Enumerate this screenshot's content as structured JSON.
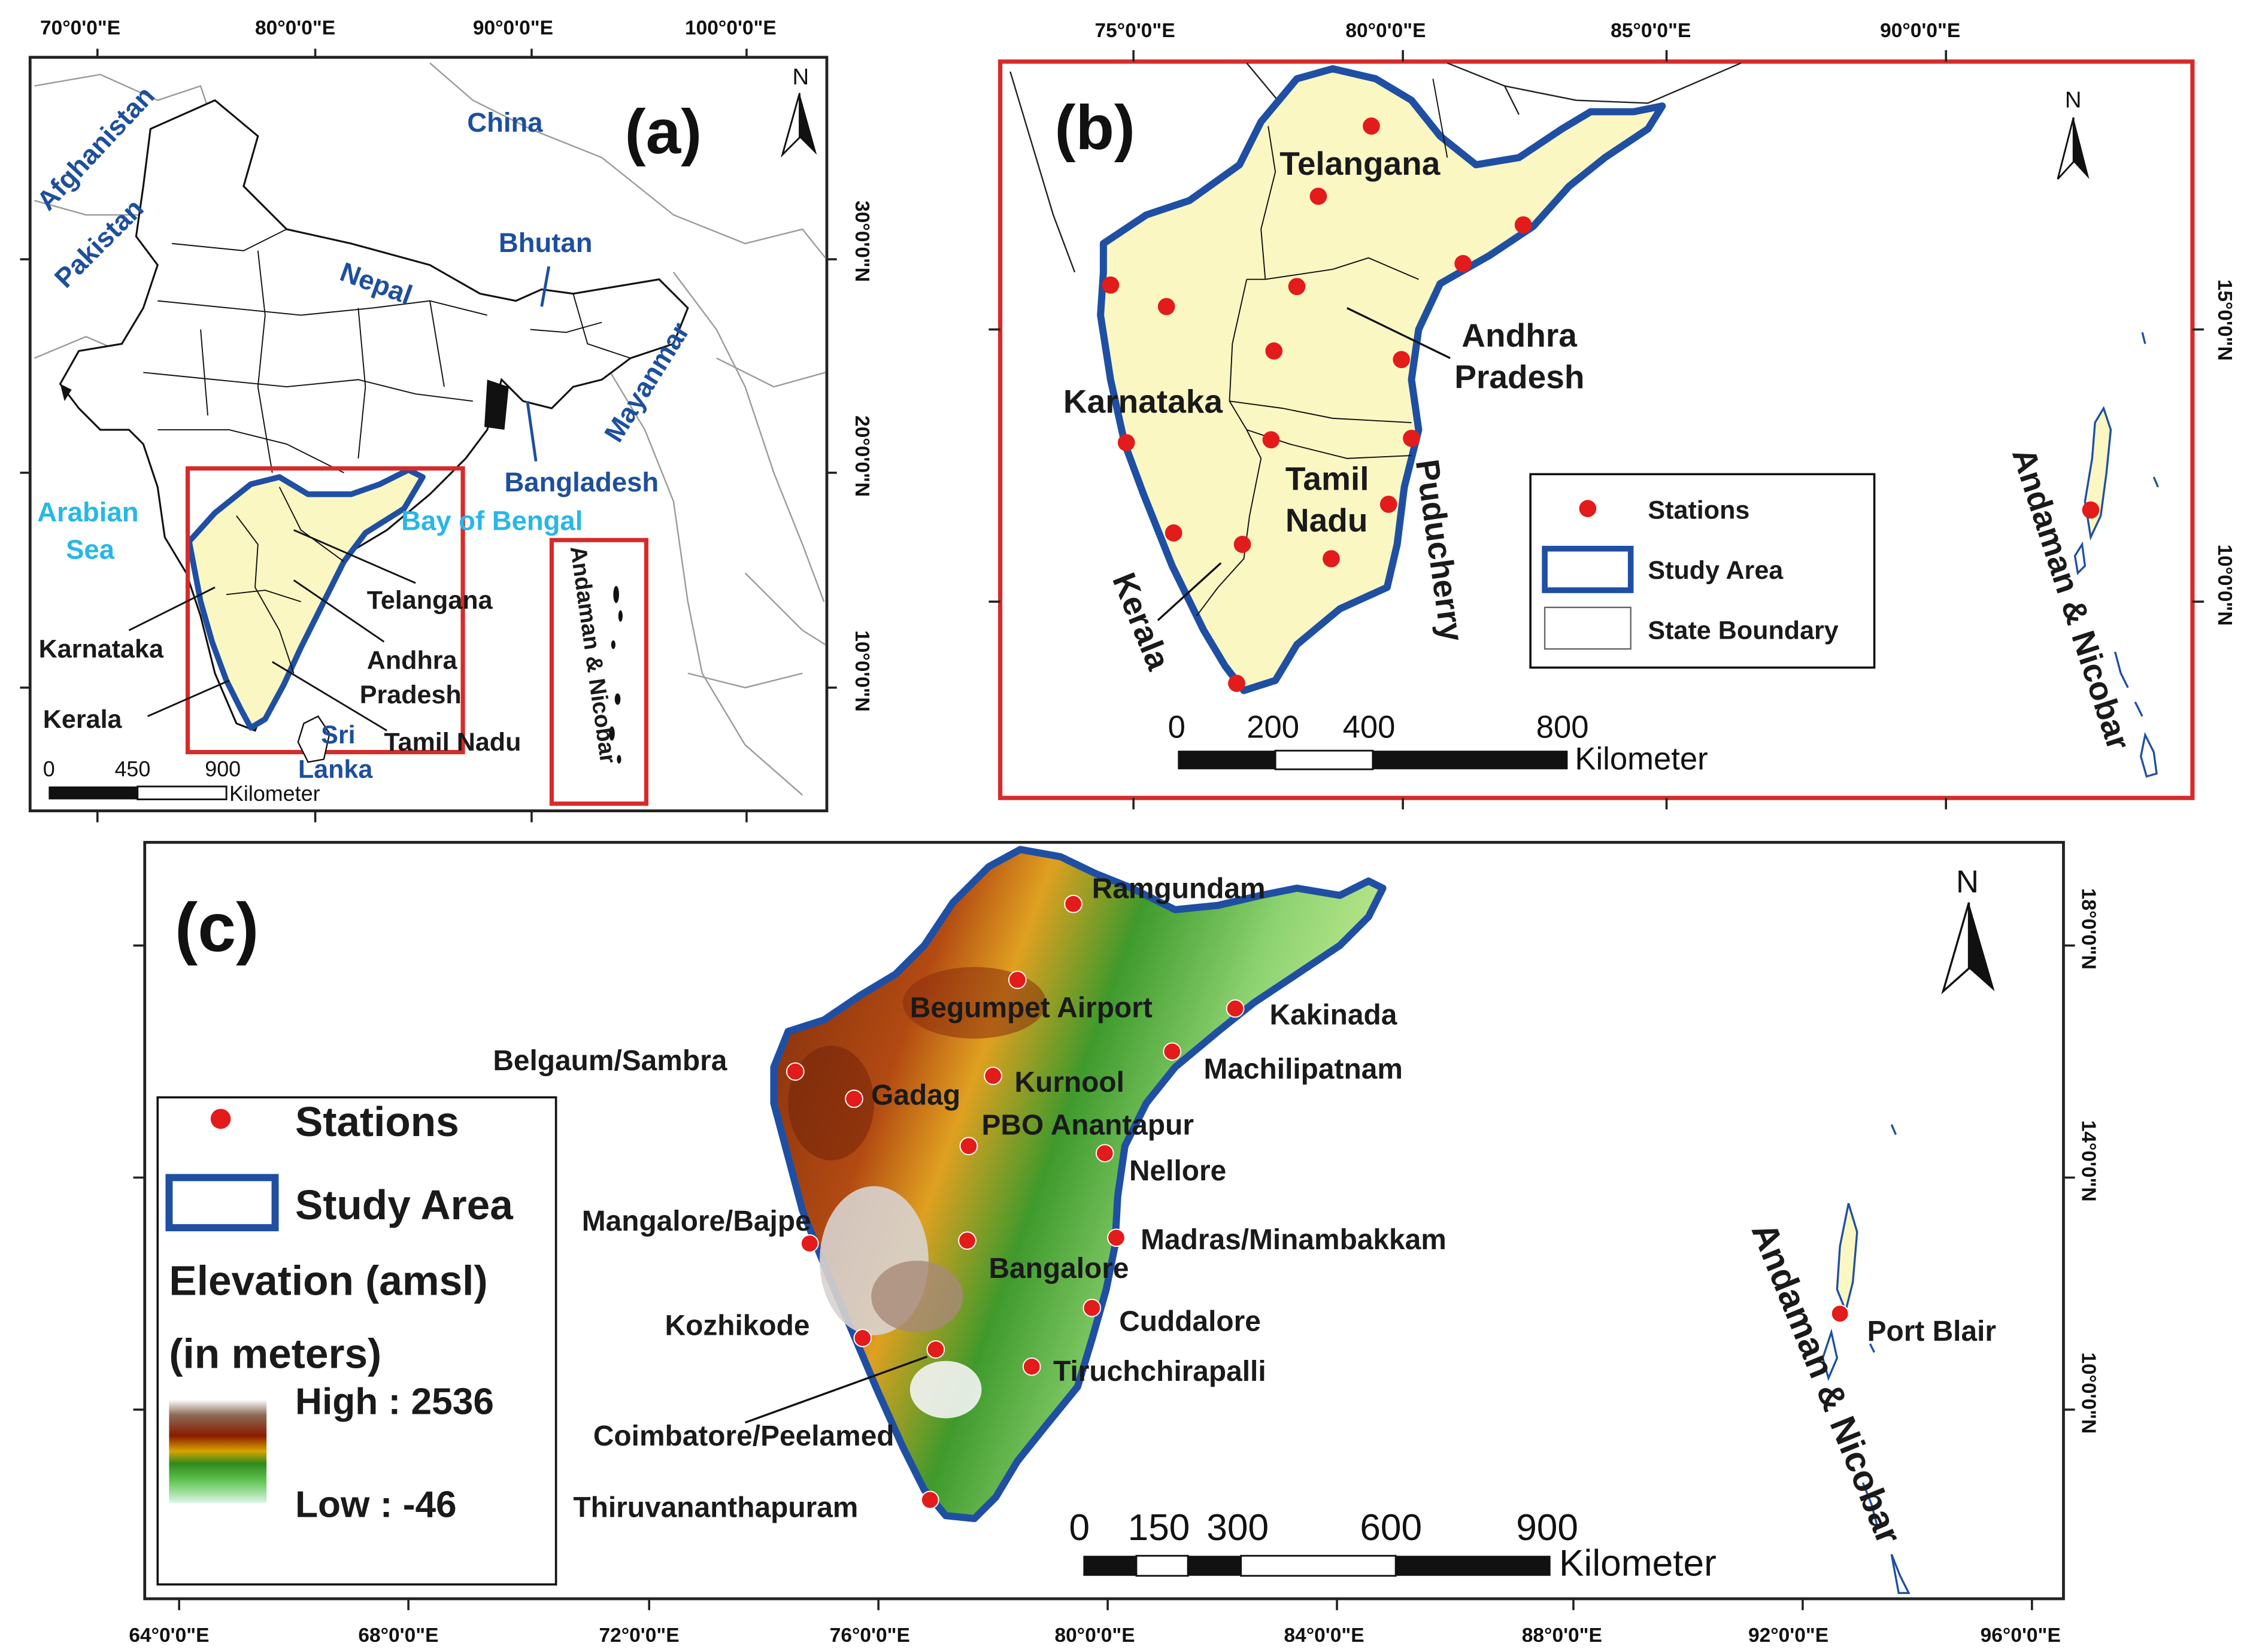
{
  "panels": {
    "a": {
      "label": "(a)",
      "lon_ticks": [
        "70°0'0\"E",
        "80°0'0\"E",
        "90°0'0\"E",
        "100°0'0\"E"
      ],
      "lat_ticks": [
        "30°0'0\"N",
        "20°0'0\"N",
        "10°0'0\"N"
      ],
      "countries": [
        "China",
        "Afghanistan",
        "Pakistan",
        "Nepal",
        "Bhutan",
        "Mayanmar",
        "Bangladesh"
      ],
      "seas": [
        "Arabian",
        "Sea",
        "Bay of Bengal"
      ],
      "states": [
        "Telangana",
        "Karnataka",
        "Andhra",
        "Pradesh",
        "Kerala",
        "Tamil Nadu"
      ],
      "sri_lanka": [
        "Sri",
        "Lanka"
      ],
      "islands": "Andaman & Nicobar",
      "scale": [
        "0",
        "450",
        "900"
      ],
      "scale_unit": "Kilometer",
      "north": "N"
    },
    "b": {
      "label": "(b)",
      "lon_ticks": [
        "75°0'0\"E",
        "80°0'0\"E",
        "85°0'0\"E",
        "90°0'0\"E"
      ],
      "lat_ticks": [
        "15°0'0\"N",
        "10°0'0\"N"
      ],
      "states": [
        "Telangana",
        "Andhra",
        "Pradesh",
        "Karnataka",
        "Tamil",
        "Nadu",
        "Puducherry",
        "Kerala"
      ],
      "islands": "Andaman & Nicobar",
      "legend": [
        "Stations",
        "Study Area",
        "State Boundary"
      ],
      "scale": [
        "0",
        "200",
        "400",
        "800"
      ],
      "scale_unit": "Kilometer",
      "north": "N"
    },
    "c": {
      "label": "(c)",
      "lon_ticks": [
        "64°0'0\"E",
        "68°0'0\"E",
        "72°0'0\"E",
        "76°0'0\"E",
        "80°0'0\"E",
        "84°0'0\"E",
        "88°0'0\"E",
        "92°0'0\"E",
        "96°0'0\"E"
      ],
      "lat_ticks": [
        "18°0'0\"N",
        "14°0'0\"N",
        "10°0'0\"N"
      ],
      "stations": [
        "Ramgundam",
        "Begumpet Airport",
        "Kakinada",
        "Belgaum/Sambra",
        "Machilipatnam",
        "Gadag",
        "Kurnool",
        "PBO Anantapur",
        "Nellore",
        "Mangalore/Bajpe",
        "Madras/Minambakkam",
        "Bangalore",
        "Cuddalore",
        "Kozhikode",
        "Tiruchchirapalli",
        "Coimbatore/Peelamed",
        "Thiruvananthapuram",
        "Port Blair"
      ],
      "islands": "Andaman & Nicobar",
      "legend": {
        "stations": "Stations",
        "study_area": "Study Area",
        "elevation_title": "Elevation (amsl)",
        "elevation_unit": "(in meters)",
        "high": "High : 2536",
        "low": "Low : -46"
      },
      "scale": [
        "0",
        "150",
        "300",
        "600",
        "900"
      ],
      "scale_unit": "Kilometer",
      "north": "N"
    }
  },
  "colors": {
    "study_area_outline": "#1f4fa3",
    "study_area_fill": "#fbf7c3",
    "station": "#e31b1b",
    "inset_frame": "#d62b2b",
    "country_label": "#1d4f9c",
    "sea_label": "#27b7e6"
  }
}
